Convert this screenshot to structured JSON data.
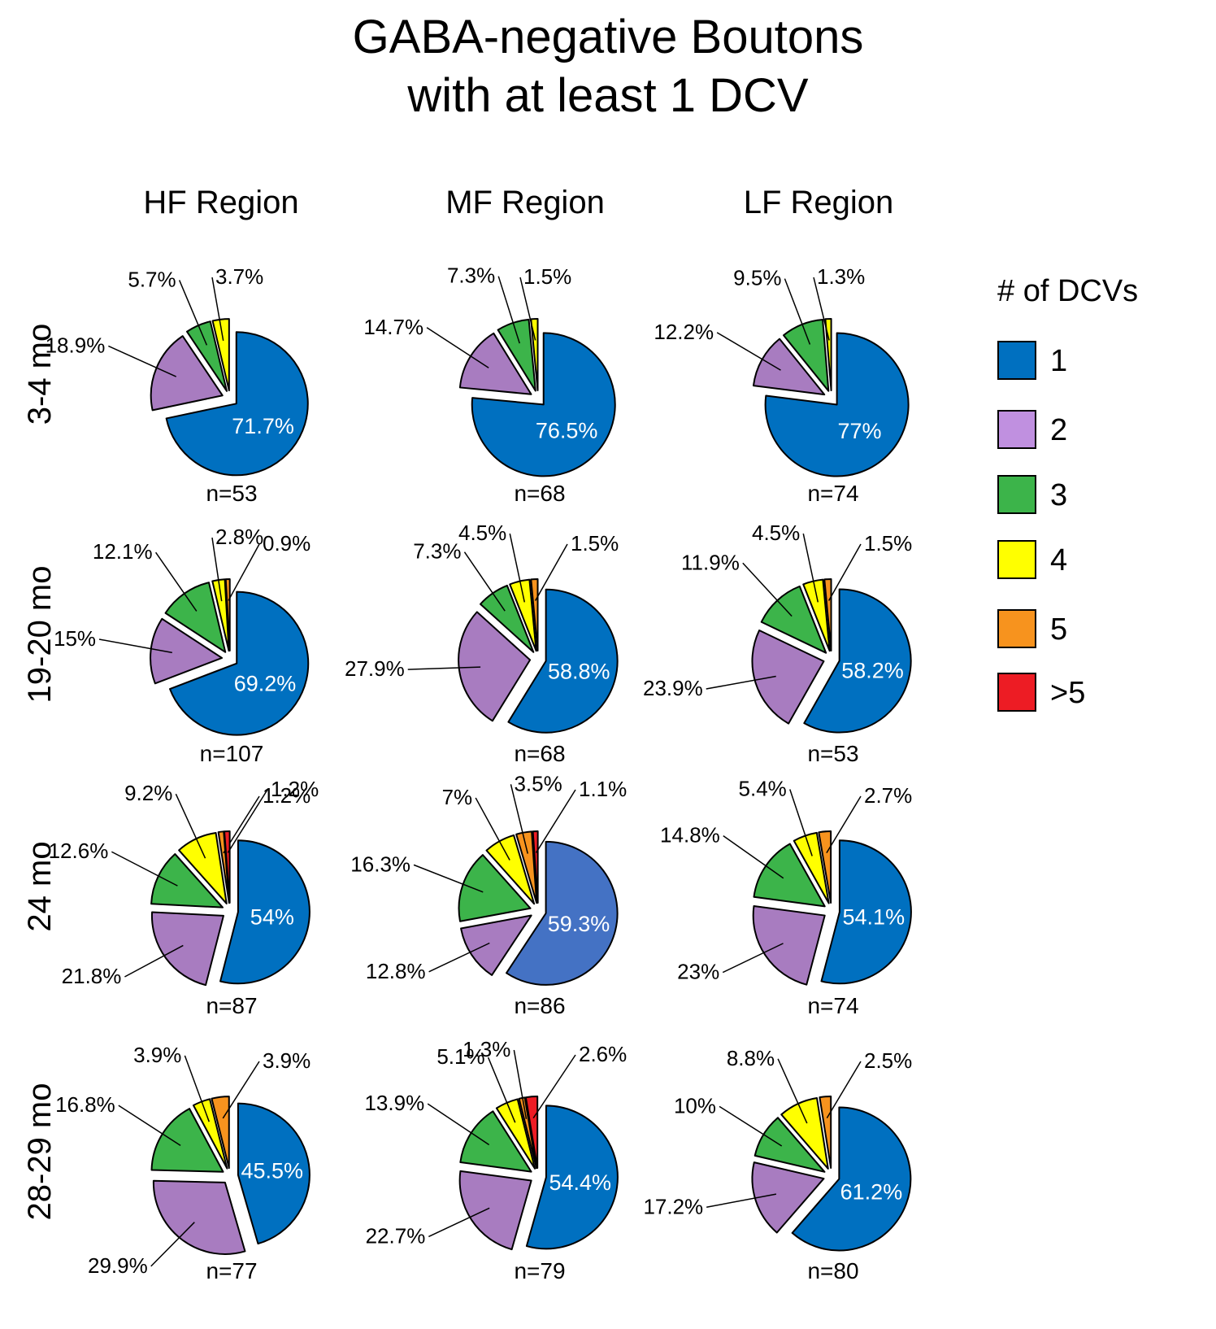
{
  "title_line1": "GABA-negative Boutons",
  "title_line2": "with at least 1 DCV",
  "chart_data": {
    "type": "pie",
    "title": "GABA-negative Boutons with at least 1 DCV",
    "columns": [
      "HF Region",
      "MF Region",
      "LF Region"
    ],
    "rows": [
      "3-4 mo",
      "19-20 mo",
      "24 mo",
      "28-29 mo"
    ],
    "legend": {
      "title": "#  of DCVs",
      "position": "right",
      "entries": [
        {
          "label": "1",
          "color": "#0070c0"
        },
        {
          "label": "2",
          "color": "#c090e0"
        },
        {
          "label": "3",
          "color": "#3cb44a"
        },
        {
          "label": "4",
          "color": "#ffff00"
        },
        {
          "label": "5",
          "color": "#f7931e"
        },
        {
          "label": ">5",
          "color": "#ed1c24"
        }
      ]
    },
    "slice_colors": [
      "#0070c0",
      "#a87cc0",
      "#3cb44a",
      "#ffff00",
      "#f7931e",
      "#ed1c24"
    ],
    "pies": [
      {
        "row": "3-4 mo",
        "col": "HF Region",
        "n": "n=53",
        "values": [
          71.7,
          18.9,
          5.7,
          3.7,
          0,
          0
        ],
        "labels": [
          "71.7%",
          "18.9%",
          "5.7%",
          "3.7%",
          "",
          ""
        ]
      },
      {
        "row": "3-4 mo",
        "col": "MF Region",
        "n": "n=68",
        "values": [
          76.5,
          14.7,
          7.3,
          1.5,
          0,
          0
        ],
        "labels": [
          "76.5%",
          "14.7%",
          "7.3%",
          "1.5%",
          "",
          ""
        ]
      },
      {
        "row": "3-4 mo",
        "col": "LF Region",
        "n": "n=74",
        "values": [
          77,
          12.2,
          9.5,
          1.3,
          0,
          0
        ],
        "labels": [
          "77%",
          "12.2%",
          "9.5%",
          "1.3%",
          "",
          ""
        ]
      },
      {
        "row": "19-20 mo",
        "col": "HF Region",
        "n": "n=107",
        "values": [
          69.2,
          15,
          12.1,
          2.8,
          0.9,
          0
        ],
        "labels": [
          "69.2%",
          "15%",
          "12.1%",
          "2.8%",
          "0.9%",
          ""
        ]
      },
      {
        "row": "19-20 mo",
        "col": "MF Region",
        "n": "n=68",
        "values": [
          58.8,
          27.9,
          7.3,
          4.5,
          1.5,
          0
        ],
        "labels": [
          "58.8%",
          "27.9%",
          "7.3%",
          "4.5%",
          "1.5%",
          ""
        ]
      },
      {
        "row": "19-20 mo",
        "col": "LF Region",
        "n": "n=53",
        "values": [
          58.2,
          23.9,
          11.9,
          4.5,
          1.5,
          0
        ],
        "labels": [
          "58.2%",
          "23.9%",
          "11.9%",
          "4.5%",
          "1.5%",
          ""
        ]
      },
      {
        "row": "24 mo",
        "col": "HF Region",
        "n": "n=87",
        "values": [
          54,
          21.8,
          12.6,
          9.2,
          1.2,
          1.2
        ],
        "labels": [
          "54%",
          "21.8%",
          "12.6%",
          "9.2%",
          "1.2%",
          "1.2%"
        ]
      },
      {
        "row": "24 mo",
        "col": "MF Region",
        "n": "n=86",
        "values": [
          59.3,
          12.8,
          16.3,
          7,
          3.5,
          1.1
        ],
        "labels": [
          "59.3%",
          "12.8%",
          "16.3%",
          "7%",
          "3.5%",
          "1.1%"
        ],
        "first_color": "#4472c4"
      },
      {
        "row": "24 mo",
        "col": "LF Region",
        "n": "n=74",
        "values": [
          54.1,
          23,
          14.8,
          5.4,
          2.7,
          0
        ],
        "labels": [
          "54.1%",
          "23%",
          "14.8%",
          "5.4%",
          "2.7%",
          ""
        ]
      },
      {
        "row": "28-29 mo",
        "col": "HF Region",
        "n": "n=77",
        "values": [
          45.5,
          29.9,
          16.8,
          3.9,
          3.9,
          0
        ],
        "labels": [
          "45.5%",
          "29.9%",
          "16.8%",
          "3.9%",
          "3.9%",
          ""
        ]
      },
      {
        "row": "28-29 mo",
        "col": "MF Region",
        "n": "n=79",
        "values": [
          54.4,
          22.7,
          13.9,
          5.1,
          1.3,
          2.6
        ],
        "labels": [
          "54.4%",
          "22.7%",
          "13.9%",
          "5.1%",
          "1.3%",
          "2.6%"
        ]
      },
      {
        "row": "28-29 mo",
        "col": "LF Region",
        "n": "n=80",
        "values": [
          61.2,
          17.2,
          10,
          8.8,
          2.5,
          0
        ],
        "labels": [
          "61.2%",
          "17.2%",
          "10%",
          "8.8%",
          "2.5%",
          ""
        ]
      }
    ]
  }
}
